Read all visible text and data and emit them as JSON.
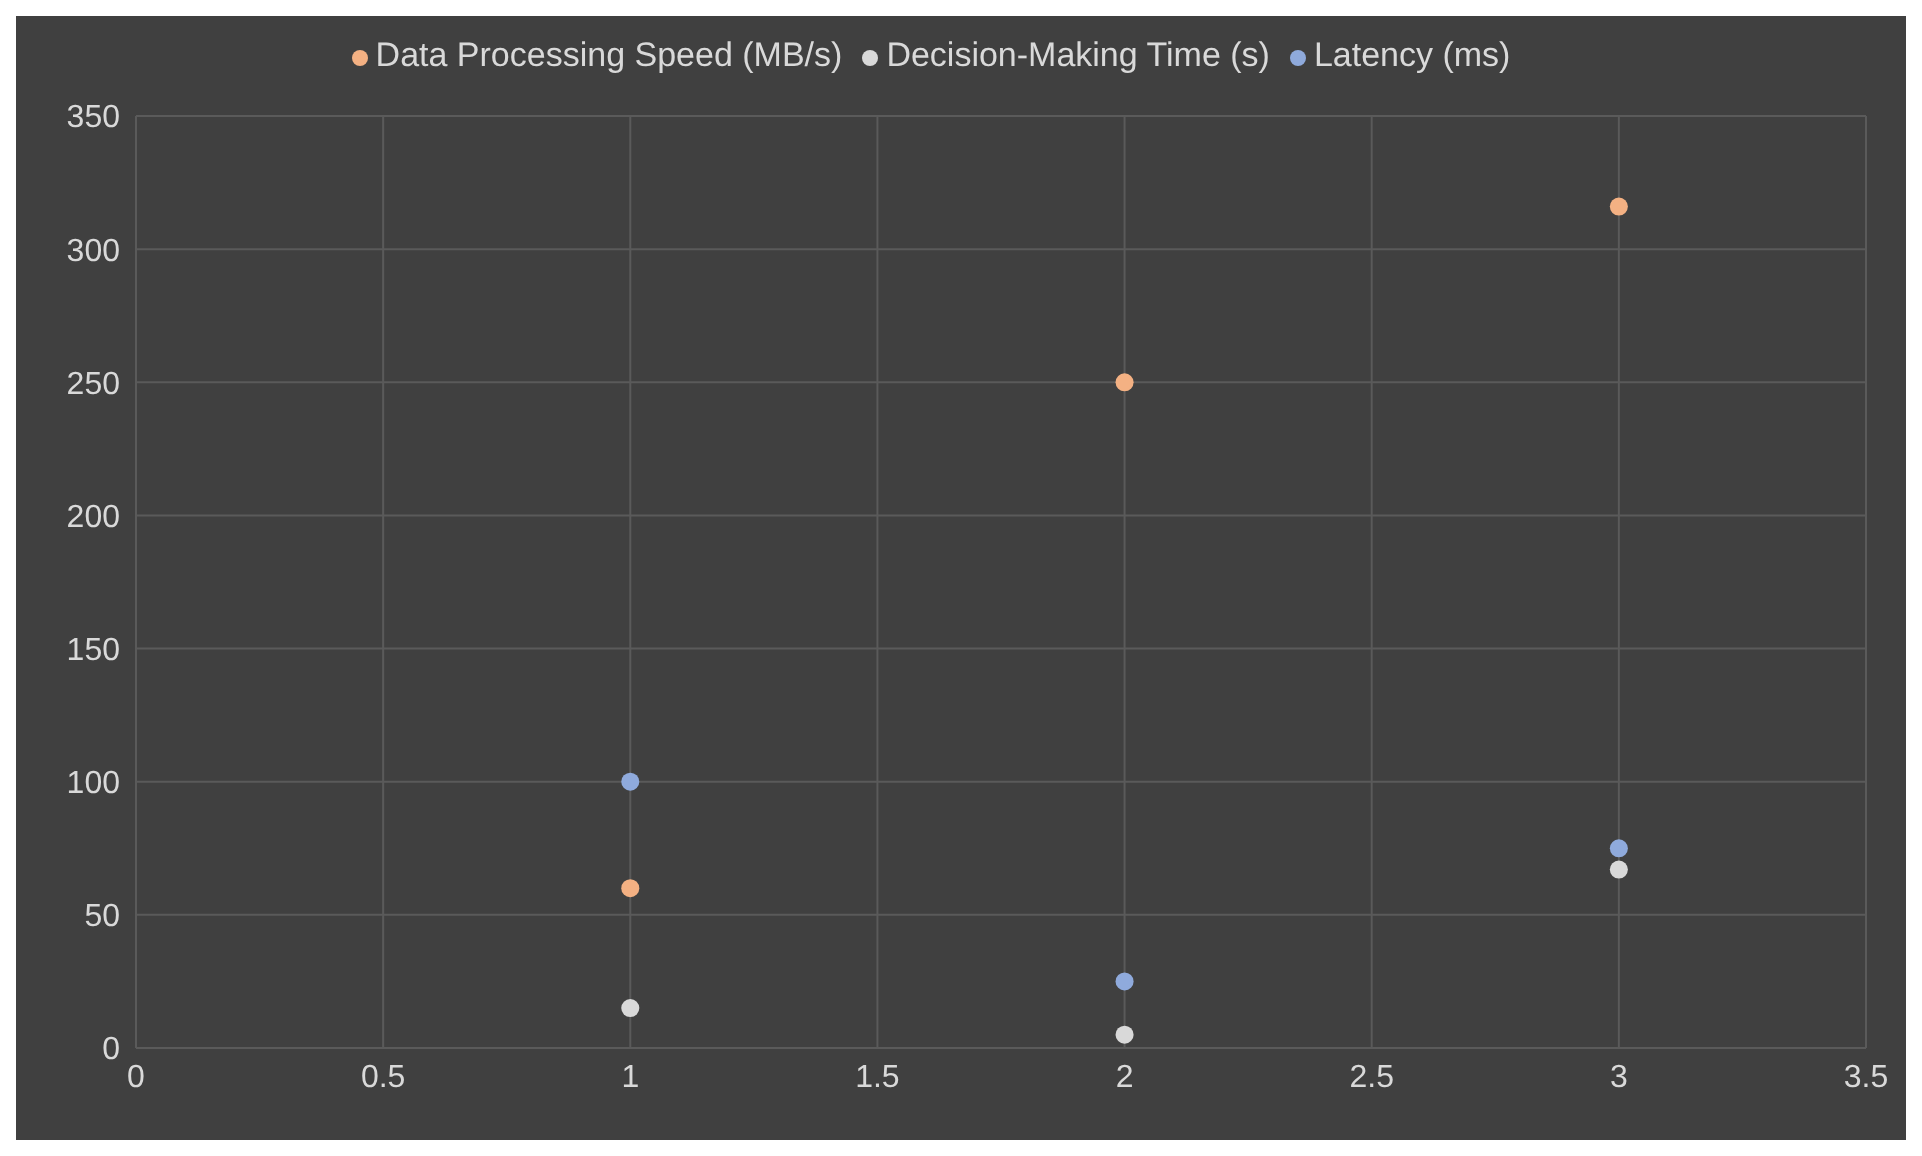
{
  "chart_data": {
    "type": "scatter",
    "x": [
      1,
      2,
      3
    ],
    "series": [
      {
        "name": "Latency (ms)",
        "color": "#8faadc",
        "values": [
          100,
          25,
          75
        ]
      },
      {
        "name": "Data Processing Speed (MB/s)",
        "color": "#f4b183",
        "values": [
          60,
          250,
          316
        ]
      },
      {
        "name": "Decision-Making Time (s)",
        "color": "#d9d9d9",
        "values": [
          15,
          5,
          67
        ]
      }
    ],
    "xlim": [
      0,
      3.5
    ],
    "xticks": [
      0,
      0.5,
      1,
      1.5,
      2,
      2.5,
      3,
      3.5
    ],
    "ylim": [
      0,
      350
    ],
    "yticks": [
      0,
      50,
      100,
      150,
      200,
      250,
      300,
      350
    ],
    "grid": true,
    "legend": "top",
    "marker": "circle"
  }
}
